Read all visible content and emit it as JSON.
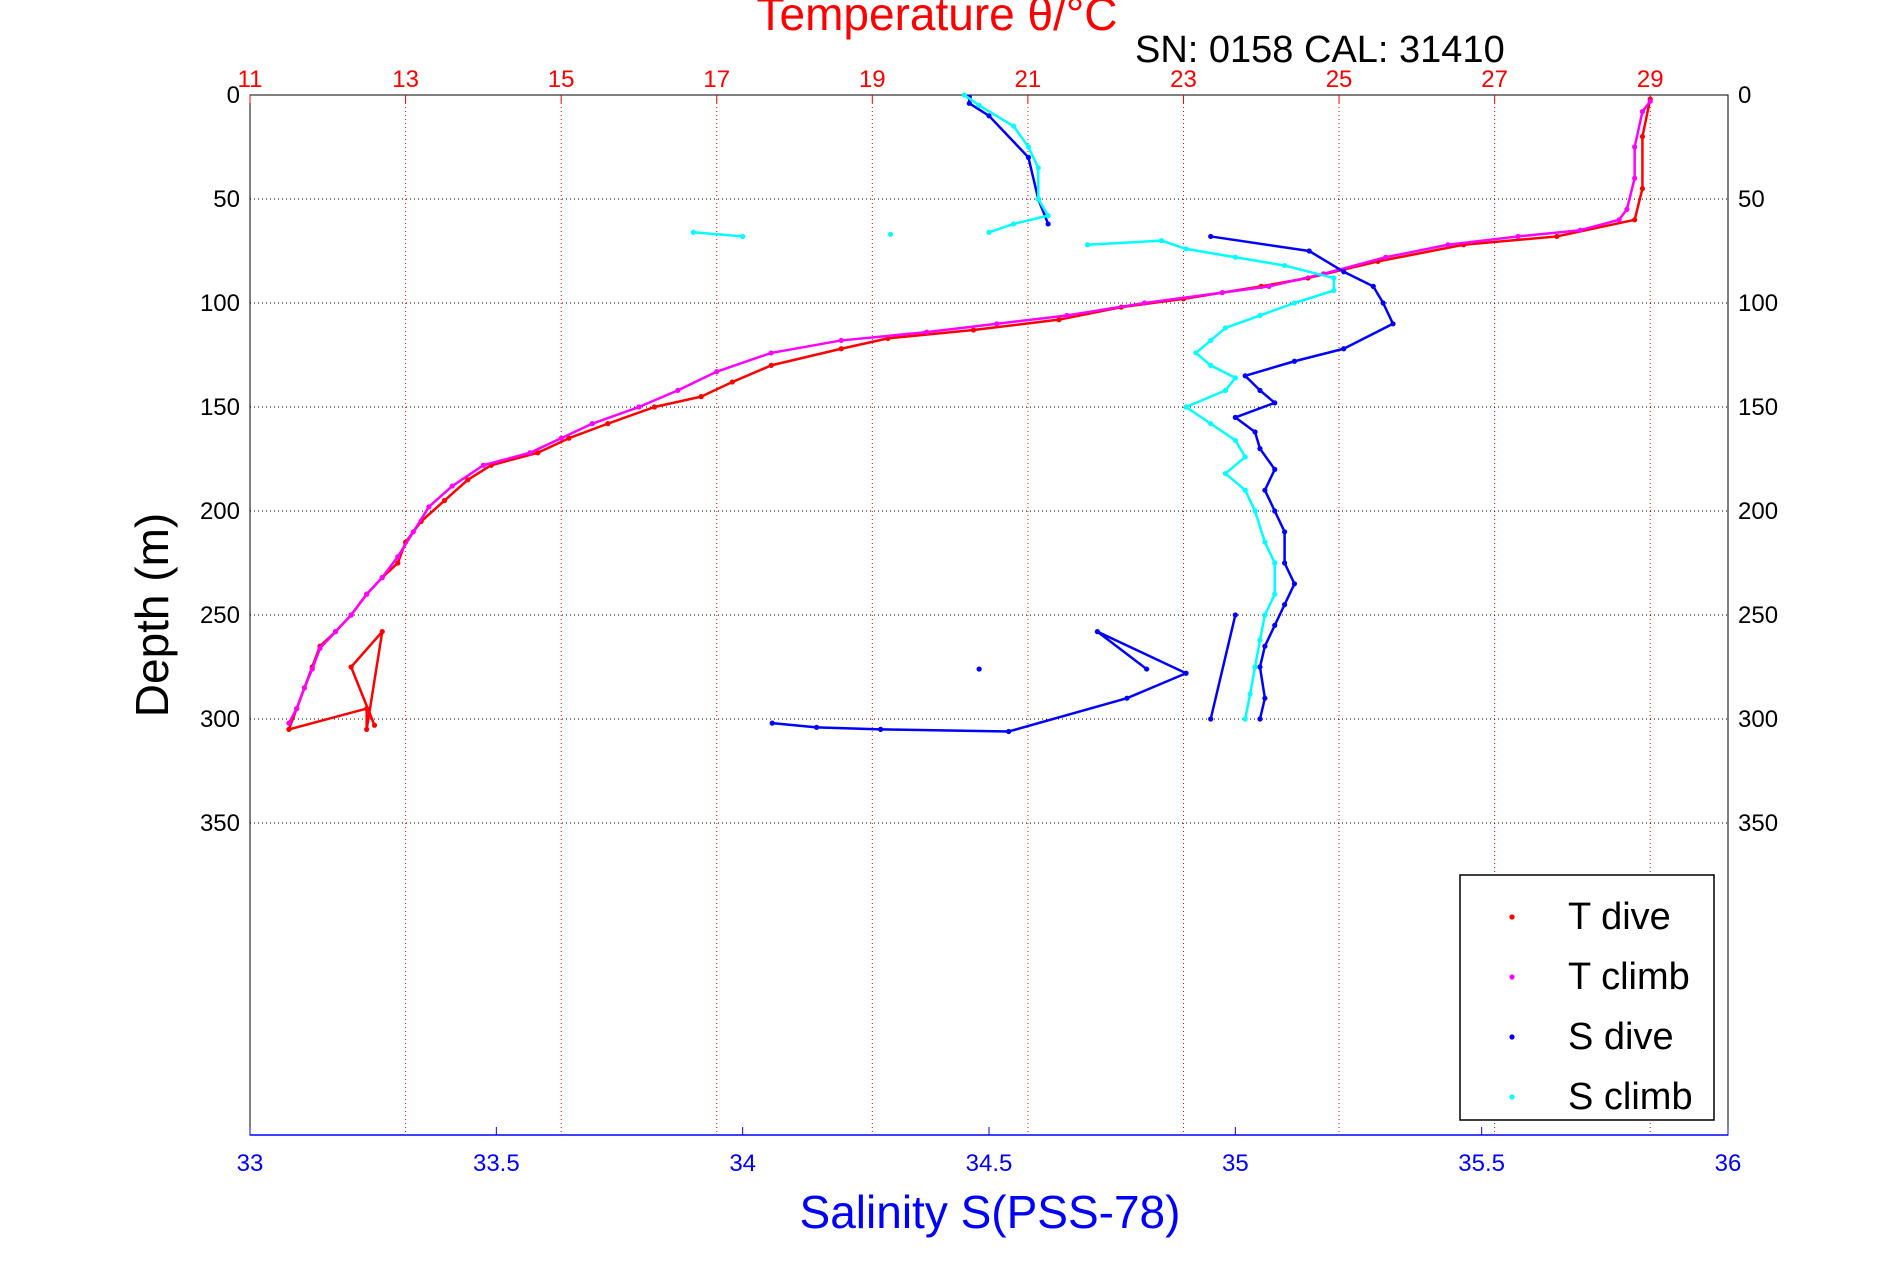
{
  "chart_data": {
    "type": "scatter",
    "title": "Temperature θ/°C",
    "subtitle": "SN: 0158  CAL: 31410",
    "xlabel": "Salinity S(PSS-78)",
    "ylabel": "Depth (m)",
    "temperature_axis": {
      "range": [
        11,
        30
      ],
      "ticks": [
        "11",
        "13",
        "15",
        "17",
        "19",
        "21",
        "23",
        "25",
        "27",
        "29"
      ],
      "color": "#ff0000",
      "position": "top"
    },
    "salinity_axis": {
      "range": [
        33,
        36
      ],
      "ticks": [
        "33",
        "33.5",
        "34",
        "34.5",
        "35",
        "35.5",
        "36"
      ],
      "color": "#0000ff",
      "position": "bottom"
    },
    "depth_axis": {
      "range": [
        0,
        500
      ],
      "reversed": true,
      "ticks": [
        "0",
        "50",
        "100",
        "150",
        "200",
        "250",
        "300",
        "350"
      ]
    },
    "grid": true,
    "legend": {
      "placement": "bottom-right",
      "entries": [
        "T dive",
        "T climb",
        "S dive",
        "S climb"
      ]
    },
    "series": [
      {
        "name": "T dive",
        "axis": "temperature",
        "color": "#ff0000",
        "points": [
          [
            29.0,
            2
          ],
          [
            28.9,
            20
          ],
          [
            28.9,
            45
          ],
          [
            28.8,
            60
          ],
          [
            27.8,
            68
          ],
          [
            26.6,
            72
          ],
          [
            25.5,
            80
          ],
          [
            24.6,
            88
          ],
          [
            24.0,
            92
          ],
          [
            23.0,
            98
          ],
          [
            22.2,
            102
          ],
          [
            21.4,
            108
          ],
          [
            20.3,
            113
          ],
          [
            19.2,
            117
          ],
          [
            18.6,
            122
          ],
          [
            17.7,
            130
          ],
          [
            17.2,
            138
          ],
          [
            16.8,
            145
          ],
          [
            16.2,
            150
          ],
          [
            15.6,
            158
          ],
          [
            15.1,
            165
          ],
          [
            14.7,
            172
          ],
          [
            14.1,
            178
          ],
          [
            13.8,
            185
          ],
          [
            13.5,
            195
          ],
          [
            13.2,
            205
          ],
          [
            13.0,
            215
          ],
          [
            12.9,
            225
          ],
          [
            12.7,
            232
          ],
          [
            12.5,
            240
          ],
          [
            12.3,
            250
          ],
          [
            12.1,
            258
          ],
          [
            11.9,
            265
          ],
          [
            11.8,
            275
          ],
          [
            11.7,
            285
          ],
          [
            11.6,
            295
          ],
          [
            11.5,
            305
          ],
          [
            12.5,
            295
          ],
          [
            12.5,
            305
          ],
          [
            12.7,
            258
          ],
          [
            12.3,
            275
          ],
          [
            12.6,
            303
          ]
        ]
      },
      {
        "name": "T climb",
        "axis": "temperature",
        "color": "#ff00ff",
        "points": [
          [
            29.0,
            3
          ],
          [
            28.9,
            8
          ],
          [
            28.8,
            25
          ],
          [
            28.8,
            40
          ],
          [
            28.7,
            55
          ],
          [
            28.6,
            60
          ],
          [
            28.1,
            65
          ],
          [
            27.3,
            68
          ],
          [
            26.4,
            72
          ],
          [
            25.6,
            78
          ],
          [
            24.8,
            86
          ],
          [
            24.1,
            92
          ],
          [
            23.5,
            95
          ],
          [
            22.5,
            100
          ],
          [
            21.5,
            106
          ],
          [
            20.6,
            110
          ],
          [
            19.7,
            114
          ],
          [
            18.6,
            118
          ],
          [
            17.7,
            124
          ],
          [
            17.0,
            133
          ],
          [
            16.5,
            142
          ],
          [
            16.0,
            150
          ],
          [
            15.4,
            158
          ],
          [
            15.0,
            165
          ],
          [
            14.6,
            172
          ],
          [
            14.0,
            178
          ],
          [
            13.6,
            188
          ],
          [
            13.3,
            198
          ],
          [
            13.1,
            210
          ],
          [
            12.9,
            222
          ],
          [
            12.7,
            232
          ],
          [
            12.5,
            240
          ],
          [
            12.3,
            250
          ],
          [
            12.1,
            258
          ],
          [
            11.9,
            266
          ],
          [
            11.8,
            276
          ],
          [
            11.7,
            285
          ],
          [
            11.6,
            295
          ],
          [
            11.5,
            302
          ]
        ]
      },
      {
        "name": "S dive",
        "axis": "salinity",
        "color": "#0000ff",
        "points": [
          [
            34.46,
            1
          ],
          [
            34.46,
            4
          ],
          [
            34.5,
            10
          ],
          [
            34.58,
            30
          ],
          [
            34.6,
            50
          ],
          [
            34.62,
            62
          ],
          [
            34.95,
            68
          ],
          [
            35.15,
            75
          ],
          [
            35.22,
            85
          ],
          [
            35.28,
            92
          ],
          [
            35.3,
            100
          ],
          [
            35.32,
            110
          ],
          [
            35.22,
            122
          ],
          [
            35.12,
            128
          ],
          [
            35.02,
            135
          ],
          [
            35.05,
            142
          ],
          [
            35.08,
            148
          ],
          [
            35.0,
            155
          ],
          [
            35.04,
            162
          ],
          [
            35.05,
            170
          ],
          [
            35.08,
            180
          ],
          [
            35.06,
            190
          ],
          [
            35.08,
            200
          ],
          [
            35.1,
            210
          ],
          [
            35.1,
            225
          ],
          [
            35.12,
            235
          ],
          [
            35.1,
            245
          ],
          [
            35.08,
            255
          ],
          [
            35.06,
            265
          ],
          [
            35.05,
            275
          ],
          [
            35.06,
            290
          ],
          [
            35.05,
            300
          ],
          [
            34.06,
            302
          ],
          [
            34.15,
            304
          ],
          [
            34.28,
            305
          ],
          [
            34.54,
            306
          ],
          [
            34.78,
            290
          ],
          [
            34.9,
            278
          ],
          [
            34.72,
            258
          ],
          [
            34.82,
            276
          ],
          [
            34.48,
            276
          ],
          [
            35.0,
            250
          ],
          [
            34.95,
            300
          ]
        ]
      },
      {
        "name": "S climb",
        "axis": "salinity",
        "color": "#00ffff",
        "points": [
          [
            34.45,
            0
          ],
          [
            34.48,
            5
          ],
          [
            34.55,
            15
          ],
          [
            34.58,
            25
          ],
          [
            34.6,
            35
          ],
          [
            34.6,
            50
          ],
          [
            34.62,
            58
          ],
          [
            34.55,
            62
          ],
          [
            34.5,
            66
          ],
          [
            33.9,
            66
          ],
          [
            34.0,
            68
          ],
          [
            34.3,
            67
          ],
          [
            34.7,
            72
          ],
          [
            34.85,
            70
          ],
          [
            34.9,
            74
          ],
          [
            35.0,
            78
          ],
          [
            35.1,
            82
          ],
          [
            35.2,
            88
          ],
          [
            35.2,
            94
          ],
          [
            35.12,
            100
          ],
          [
            35.05,
            106
          ],
          [
            34.98,
            112
          ],
          [
            34.95,
            118
          ],
          [
            34.92,
            124
          ],
          [
            34.95,
            130
          ],
          [
            35.0,
            136
          ],
          [
            34.98,
            142
          ],
          [
            34.9,
            150
          ],
          [
            34.95,
            158
          ],
          [
            35.0,
            166
          ],
          [
            35.02,
            174
          ],
          [
            34.98,
            182
          ],
          [
            35.02,
            190
          ],
          [
            35.04,
            200
          ],
          [
            35.06,
            215
          ],
          [
            35.08,
            225
          ],
          [
            35.08,
            240
          ],
          [
            35.06,
            250
          ],
          [
            35.05,
            262
          ],
          [
            35.04,
            275
          ],
          [
            35.03,
            288
          ],
          [
            35.02,
            300
          ]
        ]
      }
    ]
  }
}
